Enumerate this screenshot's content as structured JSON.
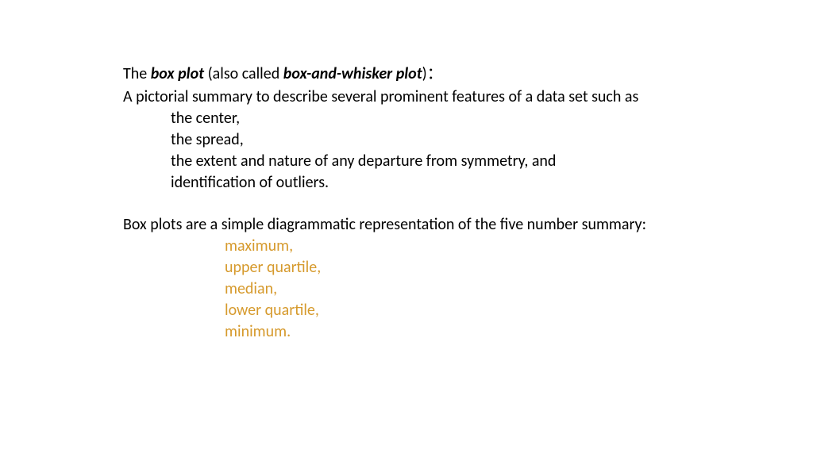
{
  "text_color": "#000000",
  "accent_color": "#d69a2d",
  "background_color": "#ffffff",
  "font_size_pt": 15,
  "intro": {
    "pre1": "The ",
    "term1": "box plot",
    "mid1": " (also called ",
    "term2": "box-and-whisker plot",
    "post1": ")：",
    "desc": "A pictorial summary to describe several prominent features of a data set such as",
    "features": [
      "the center,",
      "the spread,",
      "the extent and nature of any departure from symmetry, and",
      "identification of outliers."
    ]
  },
  "summary": {
    "lead": "Box plots are a simple diagrammatic representation of the five number summary:",
    "items": [
      "maximum,",
      "upper quartile,",
      "median,",
      "lower quartile,",
      "minimum."
    ]
  }
}
